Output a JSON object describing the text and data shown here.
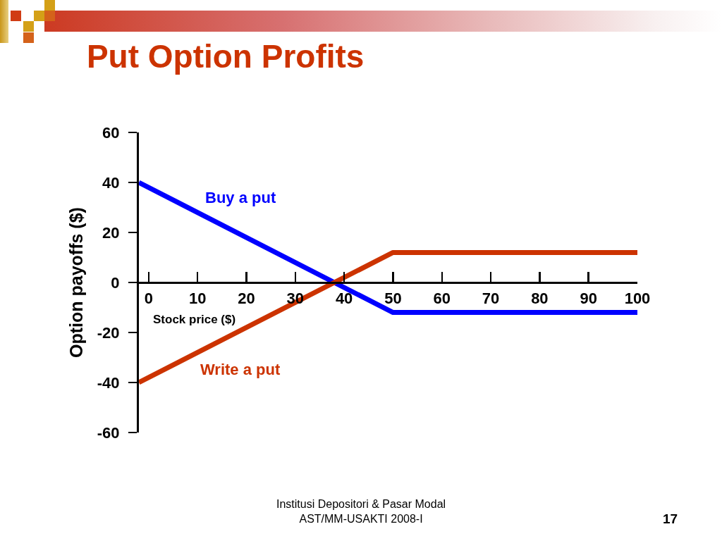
{
  "chart_data": {
    "type": "line",
    "title": "Put Option Profits",
    "xlabel": "Stock price ($)",
    "ylabel": "Option payoffs ($)",
    "x": [
      -2,
      50,
      100
    ],
    "series": [
      {
        "name": "Buy a put",
        "color": "#0000ff",
        "values": [
          40,
          -12,
          -12
        ]
      },
      {
        "name": "Write a put",
        "color": "#cc3300",
        "values": [
          -40,
          12,
          12
        ]
      }
    ],
    "xlim": [
      -2,
      100
    ],
    "xticks": [
      0,
      10,
      20,
      30,
      40,
      50,
      60,
      70,
      80,
      90,
      100
    ],
    "ylim": [
      -60,
      60
    ],
    "yticks": [
      -60,
      -40,
      -20,
      0,
      20,
      40,
      60
    ],
    "annotations": [
      "Institusi Depositori & Pasar Modal\nAST/MM-USAKTI 2008-I",
      "17"
    ]
  }
}
